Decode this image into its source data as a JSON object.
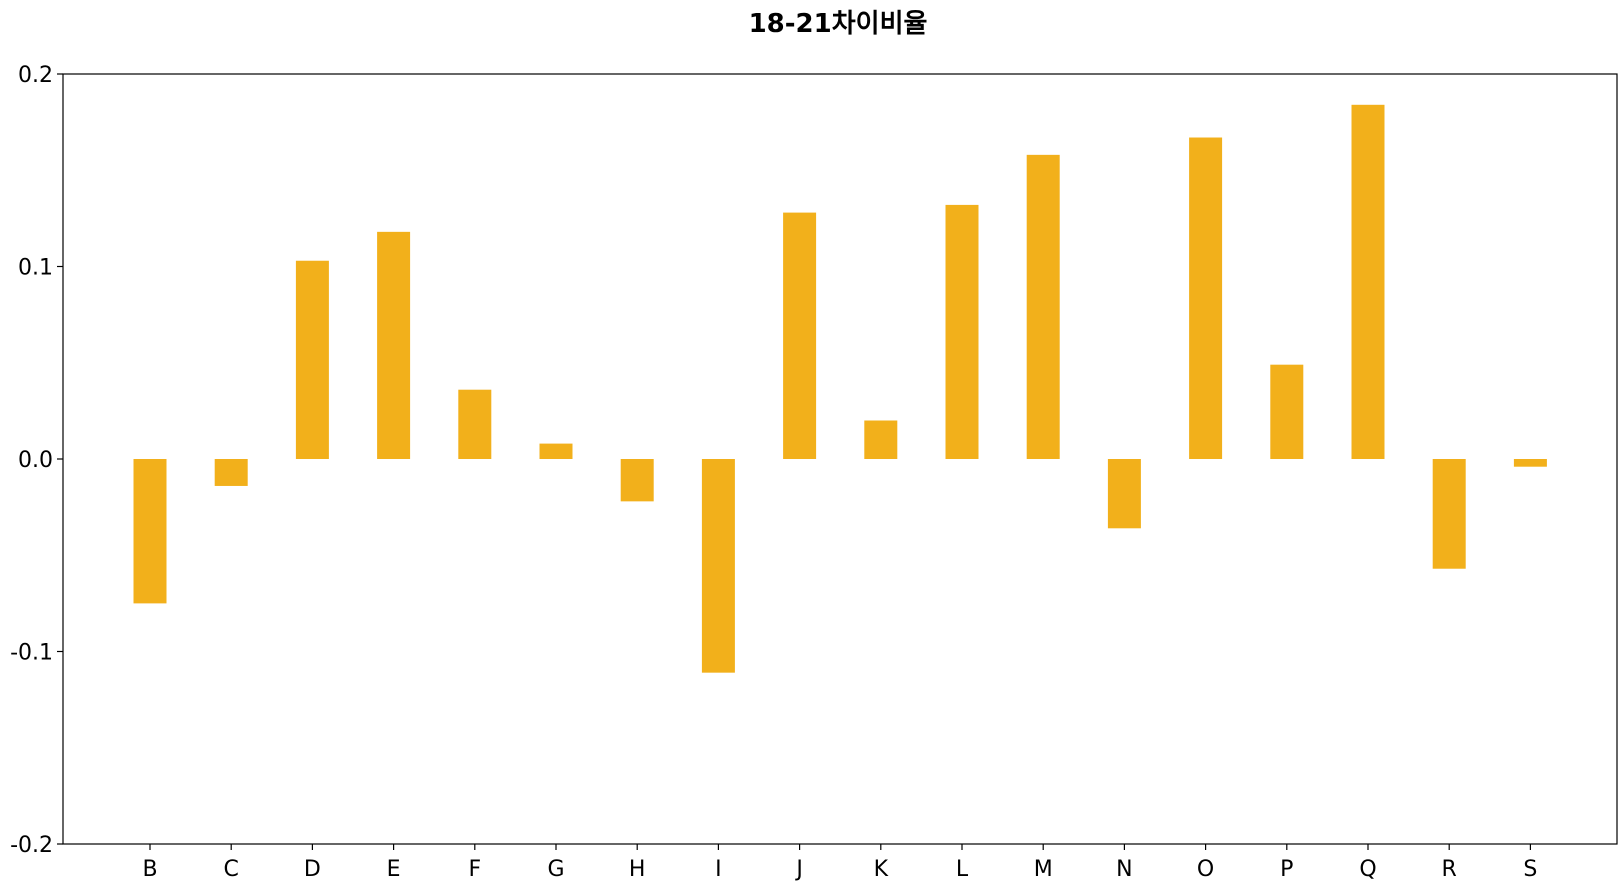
{
  "chart_data": {
    "type": "bar",
    "title": "18-21차이비율",
    "xlabel": "",
    "ylabel": "",
    "categories": [
      "B",
      "C",
      "D",
      "E",
      "F",
      "G",
      "H",
      "I",
      "J",
      "K",
      "L",
      "M",
      "N",
      "O",
      "P",
      "Q",
      "R",
      "S"
    ],
    "values": [
      -0.075,
      -0.014,
      0.103,
      0.118,
      0.036,
      0.008,
      -0.022,
      -0.111,
      0.128,
      0.02,
      0.132,
      0.158,
      -0.036,
      0.167,
      0.049,
      0.184,
      -0.057,
      -0.004
    ],
    "ylim": [
      -0.2,
      0.2
    ],
    "yticks": [
      -0.2,
      -0.1,
      0.0,
      0.1,
      0.2
    ],
    "ytick_labels": [
      "-0.2",
      "-0.1",
      "0.0",
      "0.1",
      "0.2"
    ],
    "grid": false,
    "legend": "none",
    "bar_color": "#F2B01B"
  }
}
